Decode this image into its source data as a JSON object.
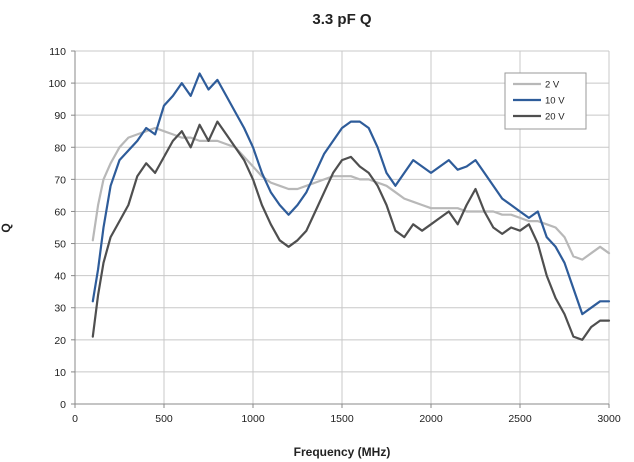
{
  "chart_data": {
    "type": "line",
    "title": "3.3 pF Q",
    "xlabel": "Frequency (MHz)",
    "ylabel": "Q",
    "xlim": [
      0,
      3000
    ],
    "ylim": [
      0,
      110
    ],
    "xticks": [
      0,
      500,
      1000,
      1500,
      2000,
      2500,
      3000
    ],
    "yticks": [
      0,
      10,
      20,
      30,
      40,
      50,
      60,
      70,
      80,
      90,
      100,
      110
    ],
    "grid": true,
    "legend_position": "top-right",
    "series": [
      {
        "name": "2 V",
        "color": "#b8b8b8",
        "x": [
          100,
          130,
          160,
          200,
          250,
          300,
          350,
          400,
          450,
          500,
          550,
          600,
          650,
          700,
          750,
          800,
          850,
          900,
          950,
          1000,
          1050,
          1100,
          1150,
          1200,
          1250,
          1300,
          1350,
          1400,
          1450,
          1500,
          1550,
          1600,
          1650,
          1700,
          1750,
          1800,
          1850,
          1900,
          1950,
          2000,
          2050,
          2100,
          2150,
          2200,
          2250,
          2300,
          2350,
          2400,
          2450,
          2500,
          2550,
          2600,
          2650,
          2700,
          2750,
          2800,
          2850,
          2900,
          2950,
          3000
        ],
        "y": [
          51,
          62,
          70,
          75,
          80,
          83,
          84,
          85,
          86,
          85,
          84,
          83,
          83,
          82,
          82,
          82,
          81,
          80,
          77,
          74,
          71,
          69,
          68,
          67,
          67,
          68,
          69,
          70,
          71,
          71,
          71,
          70,
          70,
          69,
          68,
          66,
          64,
          63,
          62,
          61,
          61,
          61,
          61,
          60,
          60,
          60,
          60,
          59,
          59,
          58,
          57,
          57,
          56,
          55,
          52,
          46,
          45,
          47,
          49,
          47
        ]
      },
      {
        "name": "10 V",
        "color": "#2e5c9a",
        "x": [
          100,
          130,
          160,
          200,
          250,
          300,
          350,
          400,
          450,
          500,
          550,
          600,
          650,
          700,
          750,
          800,
          850,
          900,
          950,
          1000,
          1050,
          1100,
          1150,
          1200,
          1250,
          1300,
          1350,
          1400,
          1450,
          1500,
          1550,
          1600,
          1650,
          1700,
          1750,
          1800,
          1850,
          1900,
          1950,
          2000,
          2050,
          2100,
          2150,
          2200,
          2250,
          2300,
          2350,
          2400,
          2450,
          2500,
          2550,
          2600,
          2650,
          2700,
          2750,
          2800,
          2850,
          2900,
          2950,
          3000
        ],
        "y": [
          32,
          42,
          55,
          68,
          76,
          79,
          82,
          86,
          84,
          93,
          96,
          100,
          96,
          103,
          98,
          101,
          96,
          91,
          86,
          80,
          72,
          66,
          62,
          59,
          62,
          66,
          72,
          78,
          82,
          86,
          88,
          88,
          86,
          80,
          72,
          68,
          72,
          76,
          74,
          72,
          74,
          76,
          73,
          74,
          76,
          72,
          68,
          64,
          62,
          60,
          58,
          60,
          52,
          49,
          44,
          36,
          28,
          30,
          32,
          32
        ]
      },
      {
        "name": "20 V",
        "color": "#4f4f4f",
        "x": [
          100,
          130,
          160,
          200,
          250,
          300,
          350,
          400,
          450,
          500,
          550,
          600,
          650,
          700,
          750,
          800,
          850,
          900,
          950,
          1000,
          1050,
          1100,
          1150,
          1200,
          1250,
          1300,
          1350,
          1400,
          1450,
          1500,
          1550,
          1600,
          1650,
          1700,
          1750,
          1800,
          1850,
          1900,
          1950,
          2000,
          2050,
          2100,
          2150,
          2200,
          2250,
          2300,
          2350,
          2400,
          2450,
          2500,
          2550,
          2600,
          2650,
          2700,
          2750,
          2800,
          2850,
          2900,
          2950,
          3000
        ],
        "y": [
          21,
          34,
          44,
          52,
          57,
          62,
          71,
          75,
          72,
          77,
          82,
          85,
          80,
          87,
          82,
          88,
          84,
          80,
          76,
          70,
          62,
          56,
          51,
          49,
          51,
          54,
          60,
          66,
          72,
          76,
          77,
          74,
          72,
          68,
          62,
          54,
          52,
          56,
          54,
          56,
          58,
          60,
          56,
          62,
          67,
          60,
          55,
          53,
          55,
          54,
          56,
          50,
          40,
          33,
          28,
          21,
          20,
          24,
          26,
          26
        ]
      }
    ]
  }
}
